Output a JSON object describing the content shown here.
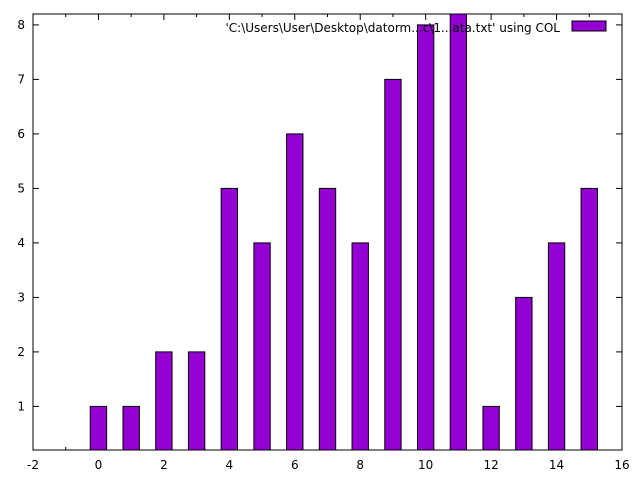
{
  "chart_data": {
    "type": "bar",
    "x": [
      0,
      1,
      2,
      3,
      4,
      5,
      6,
      7,
      8,
      9,
      10,
      11,
      12,
      13,
      14,
      15
    ],
    "series": [
      {
        "name": "'C:\\Users\\User\\Desktop\\datorm...c\\1...ata.txt' using COL",
        "values": [
          1,
          1,
          2,
          2,
          5,
          4,
          6,
          5,
          4,
          7,
          8,
          8.2,
          1,
          3,
          4,
          5
        ]
      }
    ],
    "xlim": [
      -2,
      16
    ],
    "ylim": [
      0.2,
      8.2
    ],
    "xticks": [
      "-2",
      "0",
      "2",
      "4",
      "6",
      "8",
      "10",
      "12",
      "14",
      "16"
    ],
    "yticks": [
      "1",
      "2",
      "3",
      "4",
      "5",
      "6",
      "7",
      "8"
    ],
    "bar_width": 0.5,
    "title": "",
    "xlabel": "",
    "ylabel": "",
    "grid": false,
    "legend": "top-right",
    "bar_color": "#9400d3",
    "bar_edge_color": "#000000"
  }
}
